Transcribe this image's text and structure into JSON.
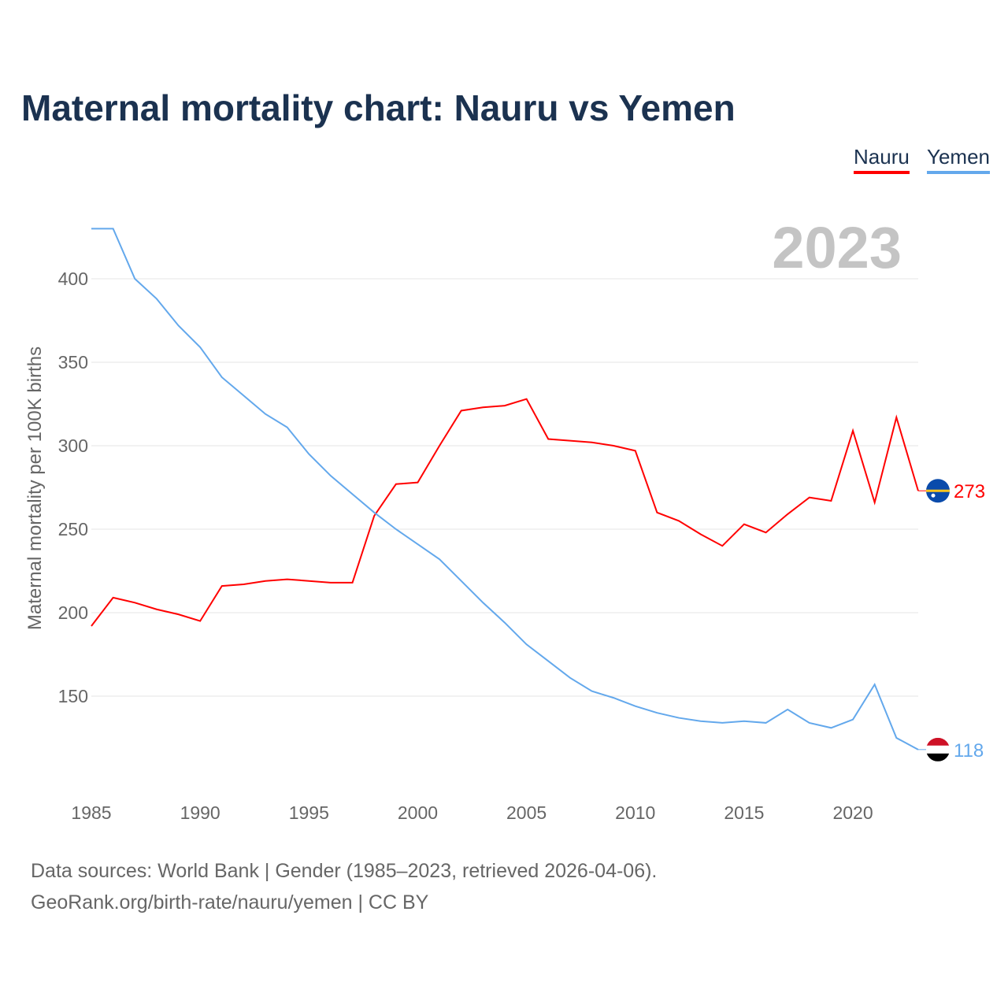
{
  "title": "Maternal mortality chart: Nauru vs Yemen",
  "footer": {
    "line1": "Data sources: World Bank | Gender (1985–2023, retrieved 2026-04-06).",
    "line2": "GeoRank.org/birth-rate/nauru/yemen | CC BY"
  },
  "chart_data": {
    "type": "line",
    "title": "Maternal mortality chart: Nauru vs Yemen",
    "ylabel": "Maternal mortality per 100K births",
    "xlabel": "",
    "year_watermark": "2023",
    "xlim": [
      1985,
      2023
    ],
    "ylim": [
      100,
      435
    ],
    "xticks": [
      "1985",
      "1990",
      "1995",
      "2000",
      "2005",
      "2010",
      "2015",
      "2020"
    ],
    "yticks": [
      "150",
      "200",
      "250",
      "300",
      "350",
      "400"
    ],
    "grid": true,
    "legend_placement": "top-right",
    "x": [
      1985,
      1986,
      1987,
      1988,
      1989,
      1990,
      1991,
      1992,
      1993,
      1994,
      1995,
      1996,
      1997,
      1998,
      1999,
      2000,
      2001,
      2002,
      2003,
      2004,
      2005,
      2006,
      2007,
      2008,
      2009,
      2010,
      2011,
      2012,
      2013,
      2014,
      2015,
      2016,
      2017,
      2018,
      2019,
      2020,
      2021,
      2022,
      2023
    ],
    "series": [
      {
        "name": "Nauru",
        "color": "#ff0000",
        "end_label": "273",
        "values": [
          192,
          209,
          206,
          202,
          199,
          195,
          216,
          217,
          219,
          220,
          219,
          218,
          218,
          258,
          277,
          278,
          300,
          321,
          323,
          324,
          328,
          304,
          303,
          302,
          300,
          297,
          260,
          255,
          247,
          240,
          253,
          248,
          259,
          269,
          267,
          309,
          266,
          317,
          273
        ]
      },
      {
        "name": "Yemen",
        "color": "#63a8ec",
        "end_label": "118",
        "values": [
          430,
          430,
          400,
          388,
          372,
          359,
          341,
          330,
          319,
          311,
          295,
          282,
          271,
          260,
          250,
          241,
          232,
          219,
          206,
          194,
          181,
          171,
          161,
          153,
          149,
          144,
          140,
          137,
          135,
          134,
          135,
          134,
          142,
          134,
          131,
          136,
          157,
          125,
          118
        ]
      }
    ]
  }
}
